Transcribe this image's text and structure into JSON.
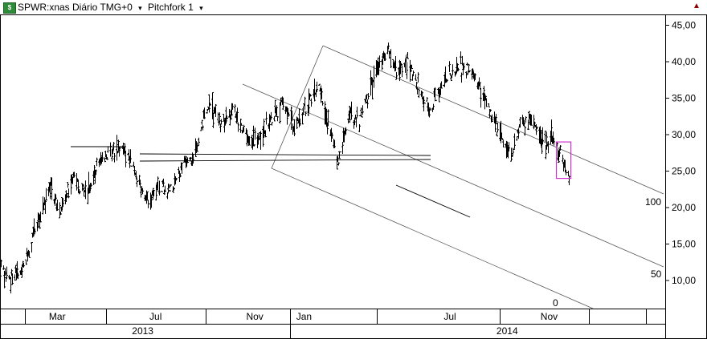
{
  "header": {
    "icon": "app-chart-icon",
    "symbol_label": "SPWR:xnas Diário TMG+0",
    "study_label": "Pitchfork 1",
    "caret": "▾"
  },
  "chart_data": {
    "type": "bar",
    "style": "ohlc",
    "yaxis": {
      "ticks": [
        "45,00",
        "40,00",
        "35,00",
        "30,00",
        "25,00",
        "20,00",
        "15,00",
        "10,00"
      ],
      "values": [
        45,
        40,
        35,
        30,
        25,
        20,
        15,
        10
      ],
      "side": "right"
    },
    "xaxis": {
      "months": [
        "Mar",
        "Jul",
        "Nov",
        "Jan",
        "Jul",
        "Nov"
      ],
      "years": [
        "2013",
        "2014"
      ]
    },
    "price_path": [
      [
        "2012-12-20",
        11.5
      ],
      [
        "2013-01-05",
        10.0
      ],
      [
        "2013-01-20",
        12.5
      ],
      [
        "2013-02-05",
        18.0
      ],
      [
        "2013-02-20",
        23.0
      ],
      [
        "2013-03-05",
        19.5
      ],
      [
        "2013-03-20",
        24.0
      ],
      [
        "2013-04-05",
        22.0
      ],
      [
        "2013-04-20",
        25.5
      ],
      [
        "2013-05-05",
        27.5
      ],
      [
        "2013-05-20",
        28.0
      ],
      [
        "2013-06-05",
        25.0
      ],
      [
        "2013-06-20",
        21.0
      ],
      [
        "2013-07-05",
        23.0
      ],
      [
        "2013-07-20",
        22.5
      ],
      [
        "2013-08-05",
        26.0
      ],
      [
        "2013-08-20",
        28.0
      ],
      [
        "2013-09-05",
        34.5
      ],
      [
        "2013-09-20",
        31.0
      ],
      [
        "2013-10-05",
        33.5
      ],
      [
        "2013-10-20",
        30.0
      ],
      [
        "2013-11-05",
        29.0
      ],
      [
        "2013-11-20",
        32.0
      ],
      [
        "2013-12-05",
        34.0
      ],
      [
        "2013-12-20",
        31.0
      ],
      [
        "2014-01-05",
        34.0
      ],
      [
        "2014-01-20",
        36.5
      ],
      [
        "2014-02-05",
        29.0
      ],
      [
        "2014-02-12",
        26.0
      ],
      [
        "2014-02-25",
        33.0
      ],
      [
        "2014-03-10",
        31.5
      ],
      [
        "2014-03-25",
        37.0
      ],
      [
        "2014-04-05",
        39.5
      ],
      [
        "2014-04-15",
        42.0
      ],
      [
        "2014-04-25",
        38.0
      ],
      [
        "2014-05-10",
        40.0
      ],
      [
        "2014-05-25",
        36.0
      ],
      [
        "2014-06-05",
        33.0
      ],
      [
        "2014-06-20",
        37.0
      ],
      [
        "2014-07-05",
        38.5
      ],
      [
        "2014-07-20",
        39.5
      ],
      [
        "2014-08-05",
        37.0
      ],
      [
        "2014-08-20",
        33.0
      ],
      [
        "2014-09-05",
        29.0
      ],
      [
        "2014-09-15",
        27.0
      ],
      [
        "2014-09-25",
        31.0
      ],
      [
        "2014-10-10",
        32.0
      ],
      [
        "2014-10-25",
        28.5
      ],
      [
        "2014-11-05",
        30.0
      ],
      [
        "2014-11-15",
        27.0
      ],
      [
        "2014-11-25",
        24.0
      ]
    ],
    "annotations": {
      "fork_labels": [
        "100",
        "50",
        "0"
      ],
      "highlight_box": {
        "date_from": "2014-11-10",
        "date_to": "2014-11-28",
        "price_from": 24.0,
        "price_to": 29.0,
        "color": "#cc33cc"
      }
    },
    "grid": false
  }
}
